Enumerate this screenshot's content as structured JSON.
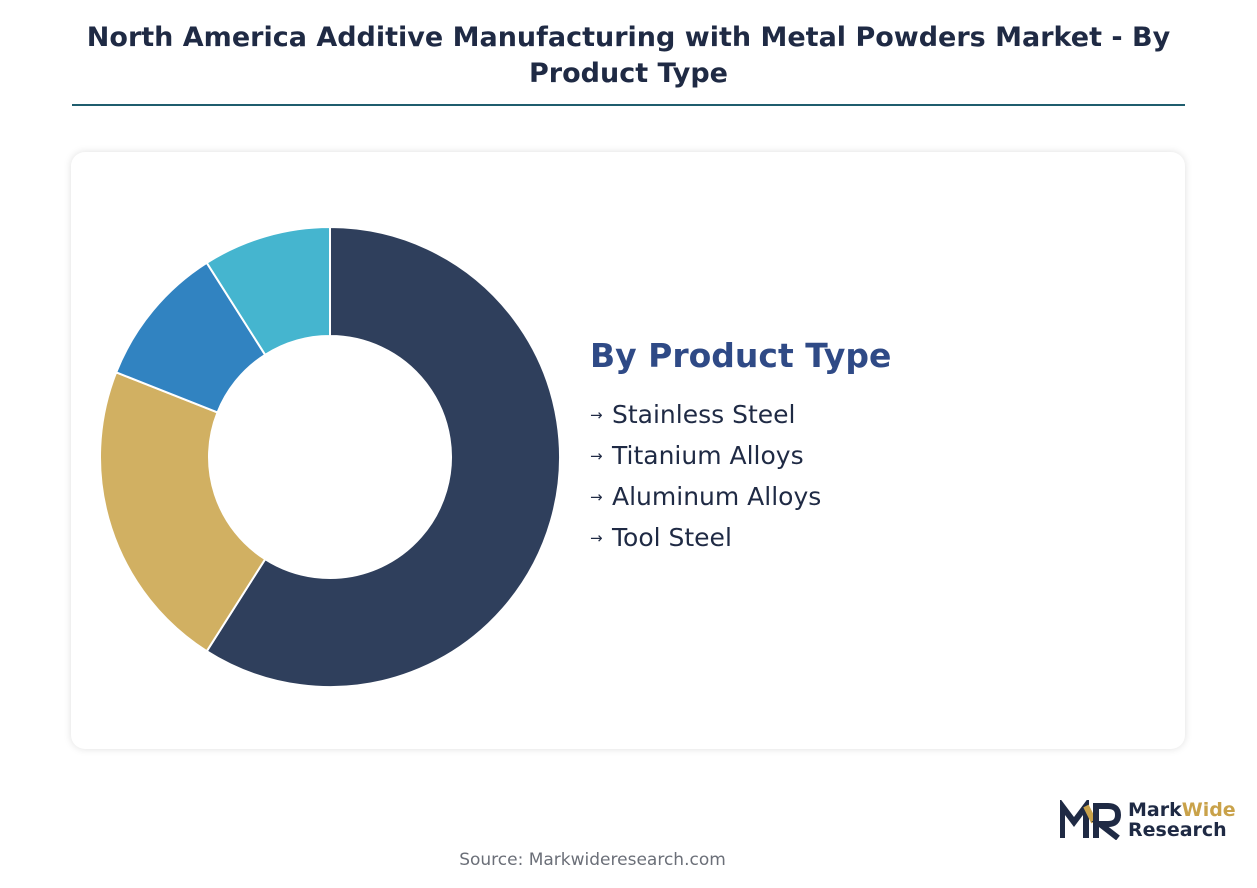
{
  "header": {
    "title": "North America Additive Manufacturing with Metal Powders Market - By Product Type"
  },
  "legend": {
    "title": "By Product Type",
    "arrow": "→",
    "items": [
      {
        "label": "Stainless Steel"
      },
      {
        "label": "Titanium Alloys"
      },
      {
        "label": "Aluminum Alloys"
      },
      {
        "label": "Tool Steel"
      }
    ]
  },
  "chart_data": {
    "type": "pie",
    "donut": true,
    "title": "",
    "categories": [
      "Stainless Steel",
      "Tool Steel",
      "Titanium Alloys",
      "Aluminum Alloys"
    ],
    "values": [
      59,
      22,
      10,
      9
    ],
    "colors": [
      "#2f3f5c",
      "#d1b062",
      "#3183c1",
      "#45b5cf"
    ],
    "legend_position": "right"
  },
  "logo": {
    "name_part1": "Mark",
    "name_part2": "Wide",
    "name_line2": "Research",
    "mark_color": "#1f2a44",
    "accent_color": "#c9a24a"
  },
  "footer": {
    "source": "Source: Markwideresearch.com"
  }
}
